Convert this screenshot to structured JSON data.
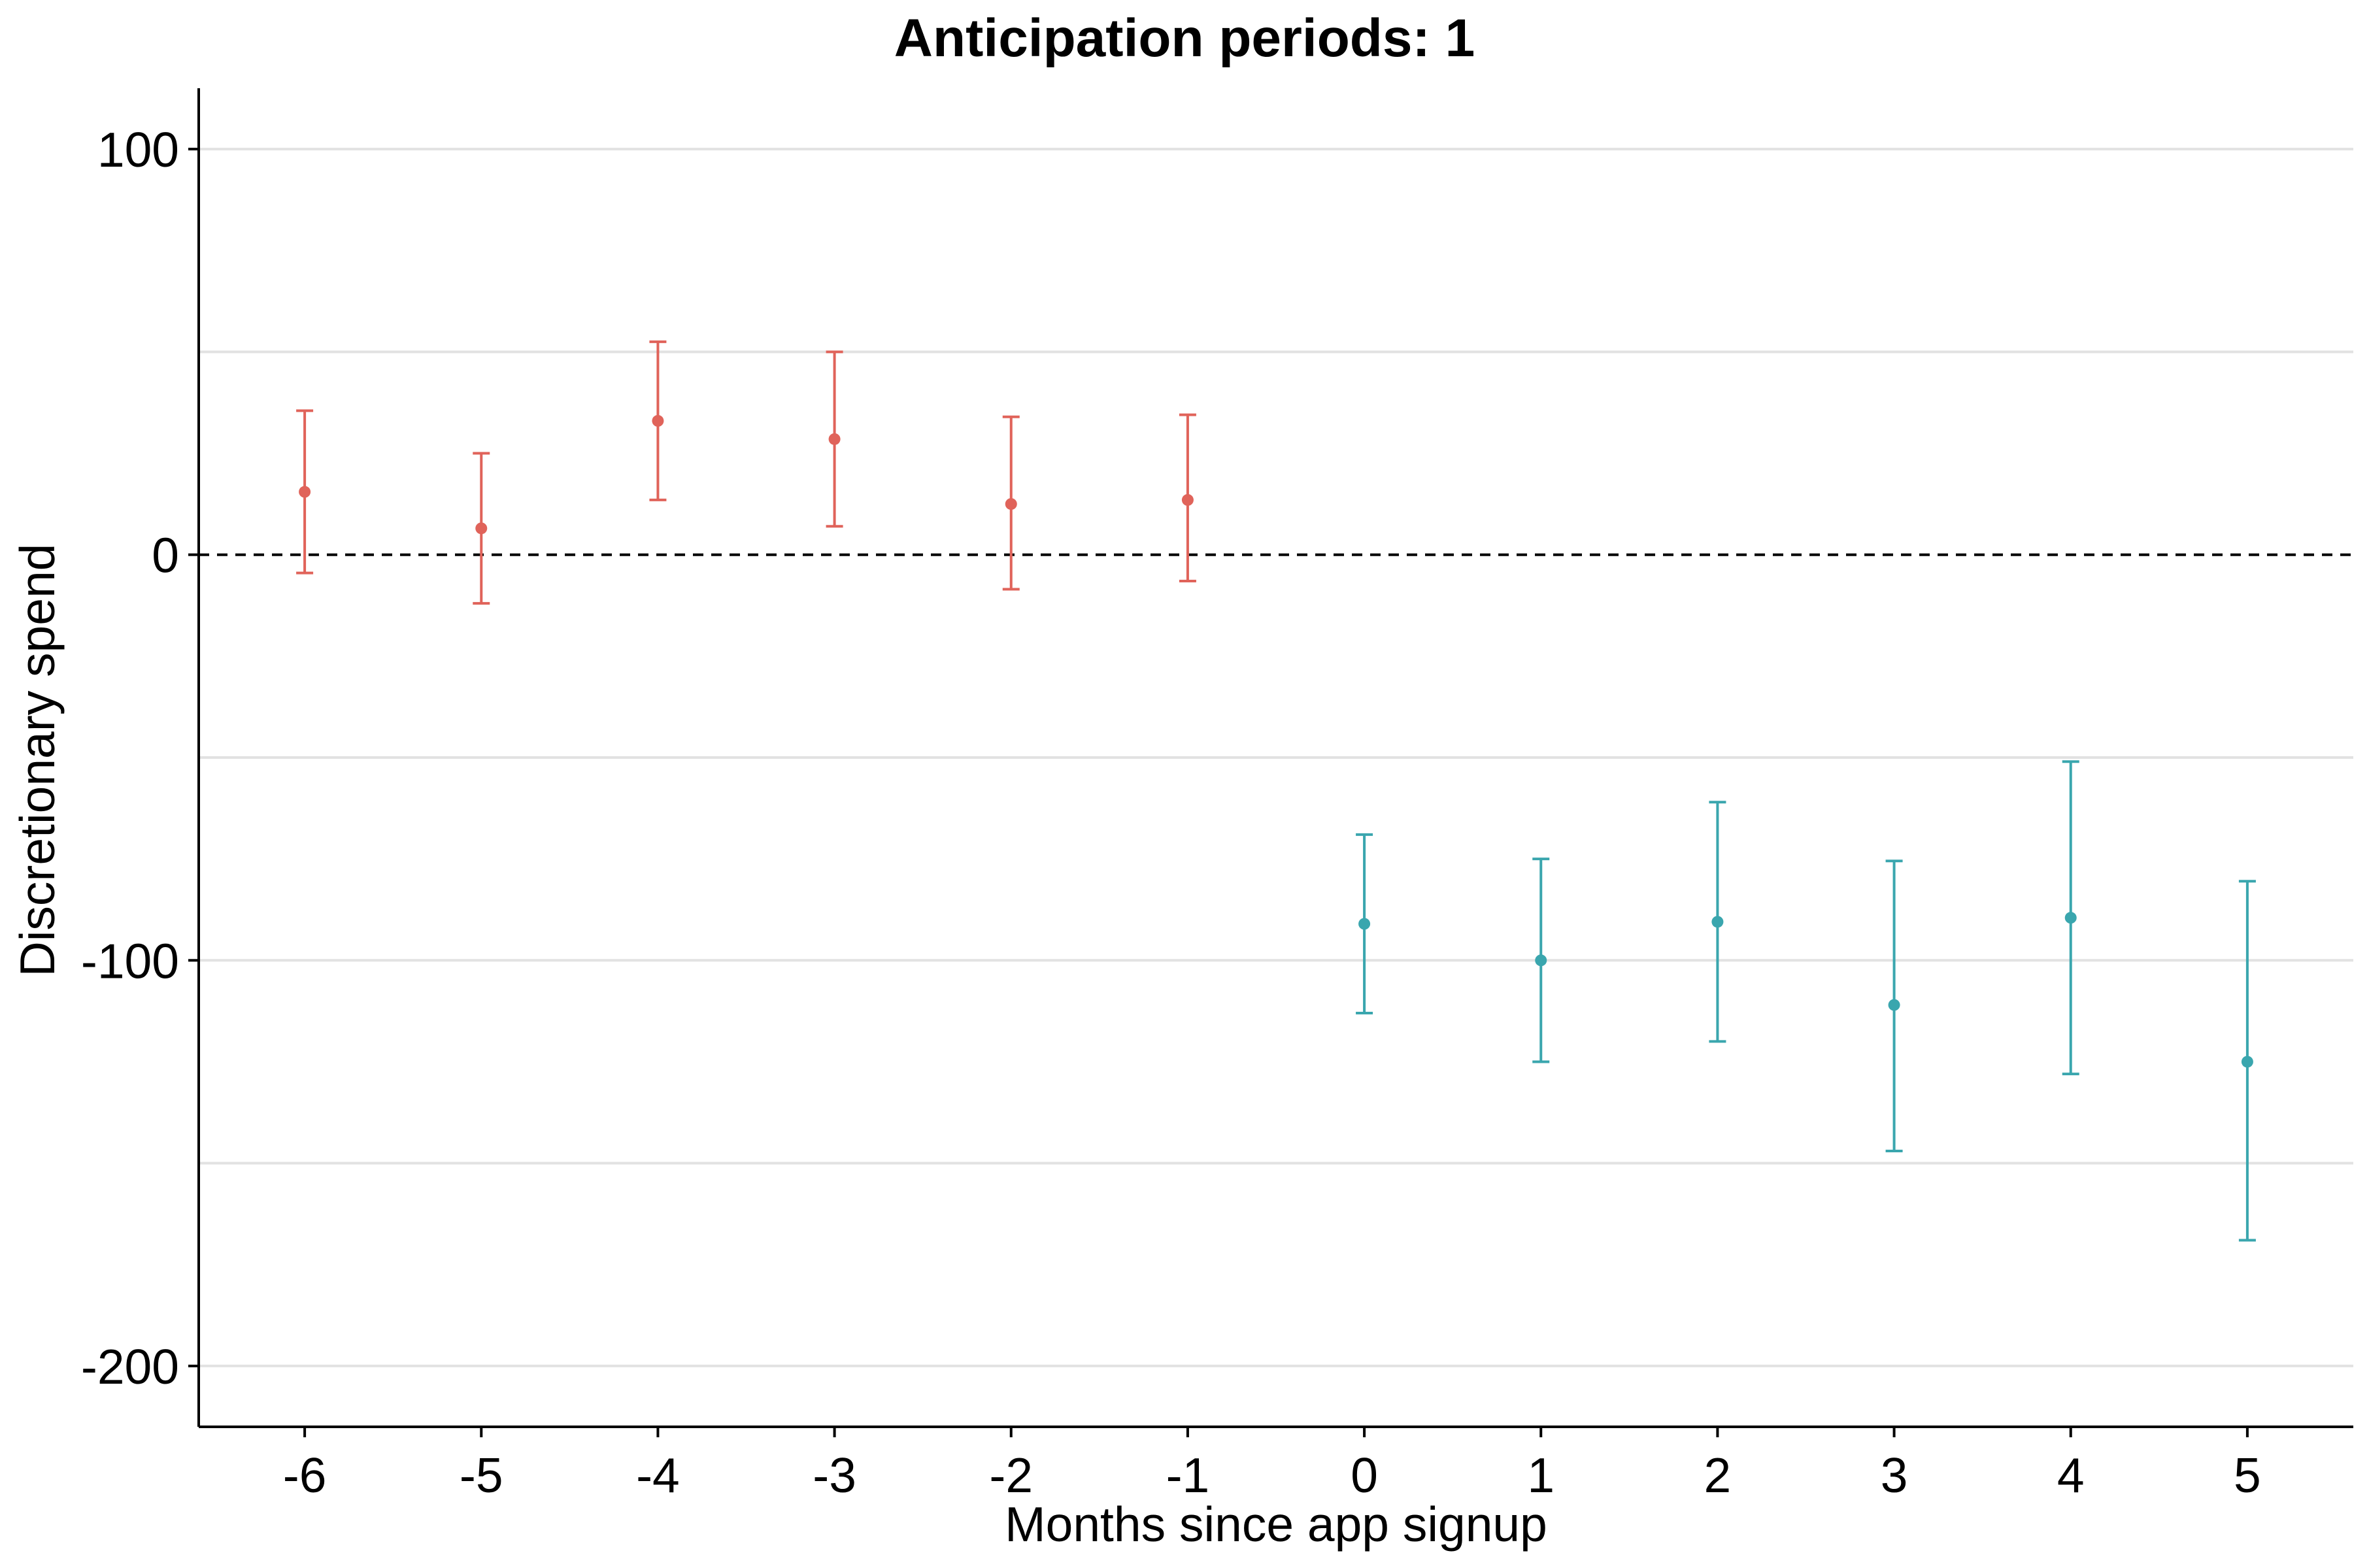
{
  "chart_data": {
    "type": "scatter",
    "title": "Anticipation periods: 1",
    "xlabel": "Months since app signup",
    "ylabel": "Discretionary spend",
    "xlim": [
      -6.6,
      5.6
    ],
    "ylim": [
      -215,
      115
    ],
    "x_ticks": [
      -6,
      -5,
      -4,
      -3,
      -2,
      -1,
      0,
      1,
      2,
      3,
      4,
      5
    ],
    "x_tick_labels": [
      "-6",
      "-5",
      "-4",
      "-3",
      "-2",
      "-1",
      "0",
      "1",
      "2",
      "3",
      "4",
      "5"
    ],
    "y_ticks": [
      100,
      0,
      -100,
      -200
    ],
    "y_tick_labels": [
      "100",
      "0",
      "-100",
      "-200"
    ],
    "y_major_gridlines": [
      100,
      0,
      -100,
      -200
    ],
    "y_minor_gridlines": [
      50,
      -50,
      -150
    ],
    "reference_line": {
      "y": 0,
      "style": "dashed"
    },
    "grid": "horizontal",
    "legend": "none",
    "colors": {
      "pre": "#E0635A",
      "post": "#3AA6AE",
      "grid": "#e2e2e2",
      "axis": "#000000"
    },
    "series": [
      {
        "color": "#E0635A",
        "points": [
          {
            "x": -6,
            "y": 15.5,
            "lo": -4.5,
            "hi": 35.5
          },
          {
            "x": -5,
            "y": 6.5,
            "lo": -12,
            "hi": 25
          },
          {
            "x": -4,
            "y": 33,
            "lo": 13.5,
            "hi": 52.5
          },
          {
            "x": -3,
            "y": 28.5,
            "lo": 7,
            "hi": 50
          },
          {
            "x": -2,
            "y": 12.5,
            "lo": -8.5,
            "hi": 34
          },
          {
            "x": -1,
            "y": 13.5,
            "lo": -6.5,
            "hi": 34.5
          }
        ]
      },
      {
        "color": "#3AA6AE",
        "points": [
          {
            "x": 0,
            "y": -91,
            "lo": -113,
            "hi": -69
          },
          {
            "x": 1,
            "y": -100,
            "lo": -125,
            "hi": -75
          },
          {
            "x": 2,
            "y": -90.5,
            "lo": -120,
            "hi": -61
          },
          {
            "x": 3,
            "y": -111,
            "lo": -147,
            "hi": -75.5
          },
          {
            "x": 4,
            "y": -89.5,
            "lo": -128,
            "hi": -51
          },
          {
            "x": 5,
            "y": -125,
            "lo": -169,
            "hi": -80.5
          }
        ]
      }
    ]
  }
}
